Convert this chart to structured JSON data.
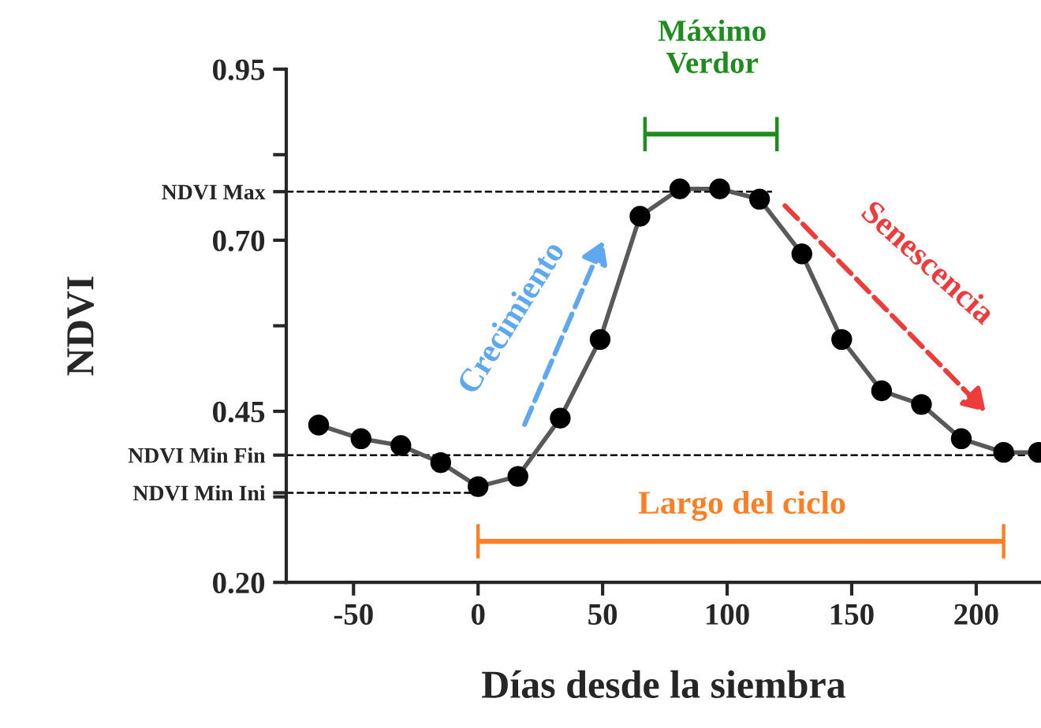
{
  "chart_data": {
    "type": "line",
    "xlabel": "Días desde la siembra",
    "ylabel": "NDVI",
    "x": [
      -64,
      -47,
      -31,
      -15,
      0,
      16,
      33,
      49,
      65,
      81,
      97,
      113,
      130,
      146,
      162,
      178,
      194,
      211,
      225
    ],
    "series": [
      {
        "color": "#595959",
        "values": [
          0.43,
          0.41,
          0.4,
          0.375,
          0.34,
          0.355,
          0.44,
          0.555,
          0.735,
          0.775,
          0.775,
          0.76,
          0.68,
          0.555,
          0.48,
          0.46,
          0.41,
          0.39,
          0.39
        ]
      }
    ],
    "marker": "circle",
    "line_style": "solid",
    "grid": false,
    "legend": false,
    "xlim": [
      -77,
      226
    ],
    "xticks": [
      -50,
      0,
      50,
      100,
      150,
      200
    ],
    "ylim": [
      0.2,
      0.95
    ],
    "yticks": [
      {
        "value": 0.2,
        "label": "0.20"
      },
      {
        "value": 0.325,
        "label": null
      },
      {
        "value": 0.331,
        "label": "NDVI Min Ini"
      },
      {
        "value": 0.386,
        "label": "NDVI Min Fin"
      },
      0.45,
      {
        "value": 0.575,
        "label": null
      },
      {
        "value": 0.7,
        "label": "0.70"
      },
      {
        "value": 0.771,
        "label": "NDVI Max"
      },
      {
        "value": 0.825,
        "label": null
      },
      0.95
    ],
    "ref_lines": [
      {
        "axis": "y",
        "value": 0.771,
        "line_style": "dashed",
        "color": "#000000"
      },
      {
        "axis": "y",
        "value": 0.386,
        "line_style": "dashed",
        "color": "#000000"
      },
      {
        "axis": "y",
        "value": 0.331,
        "line_style": "dashed",
        "color": "#000000"
      }
    ],
    "annotations": [
      "Crecimiento",
      "Senescencia",
      "Máximo\nVerdor",
      "Largo del ciclo"
    ]
  }
}
